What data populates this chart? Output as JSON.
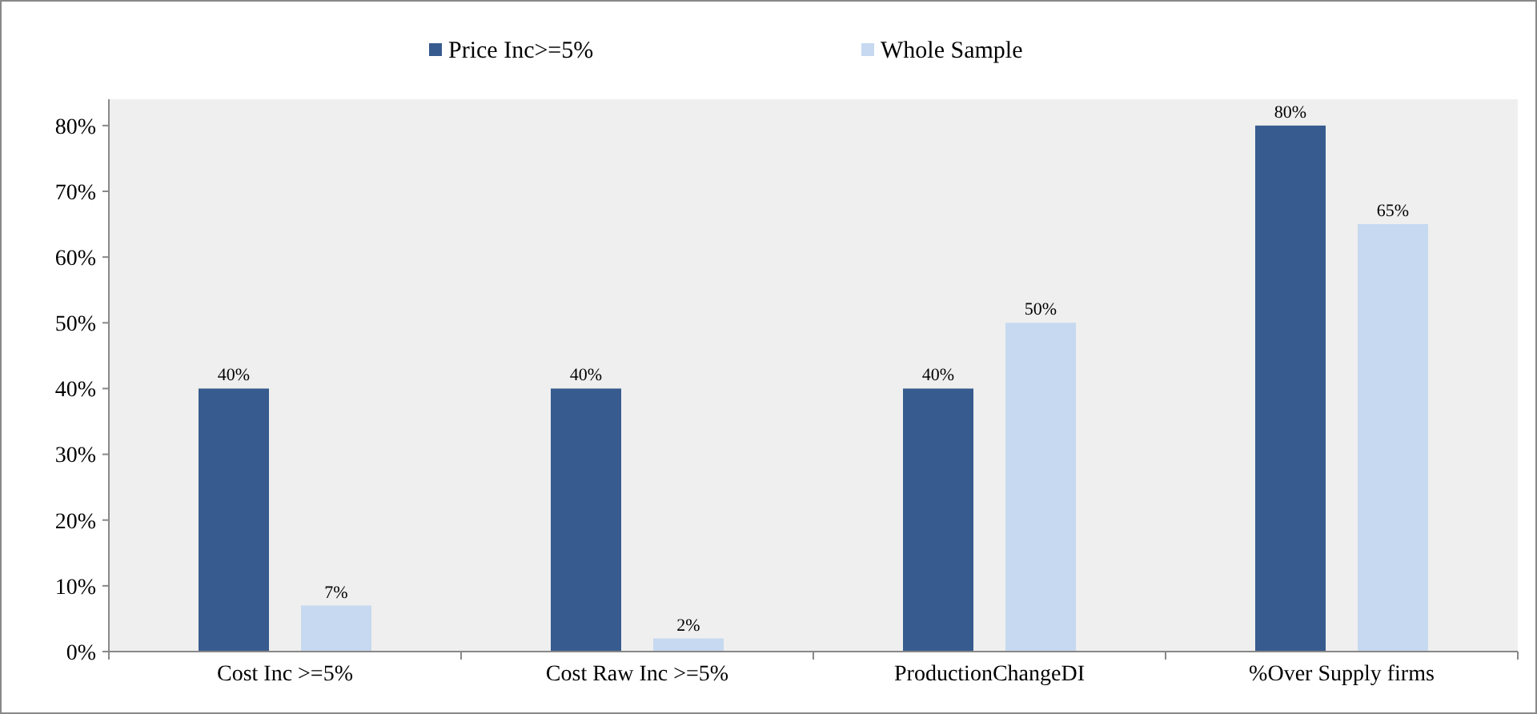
{
  "chart_data": {
    "type": "bar",
    "categories": [
      "Cost Inc >=5%",
      "Cost Raw Inc >=5%",
      "ProductionChangeDI",
      "%Over Supply firms"
    ],
    "series": [
      {
        "name": "Price Inc>=5%",
        "color": "#375b8e",
        "values": [
          40,
          40,
          40,
          80
        ],
        "value_labels": [
          "40%",
          "40%",
          "40%",
          "80%"
        ]
      },
      {
        "name": "Whole Sample",
        "color": "#c6d9f0",
        "values": [
          7,
          2,
          50,
          65
        ],
        "value_labels": [
          "7%",
          "2%",
          "50%",
          "65%"
        ]
      }
    ],
    "ylim": [
      0,
      84
    ],
    "yticks": [
      {
        "value": 0,
        "label": "0%"
      },
      {
        "value": 10,
        "label": "10%"
      },
      {
        "value": 20,
        "label": "20%"
      },
      {
        "value": 30,
        "label": "30%"
      },
      {
        "value": 40,
        "label": "40%"
      },
      {
        "value": 50,
        "label": "50%"
      },
      {
        "value": 60,
        "label": "60%"
      },
      {
        "value": 70,
        "label": "70%"
      },
      {
        "value": 80,
        "label": "80%"
      }
    ],
    "legend": "top"
  }
}
